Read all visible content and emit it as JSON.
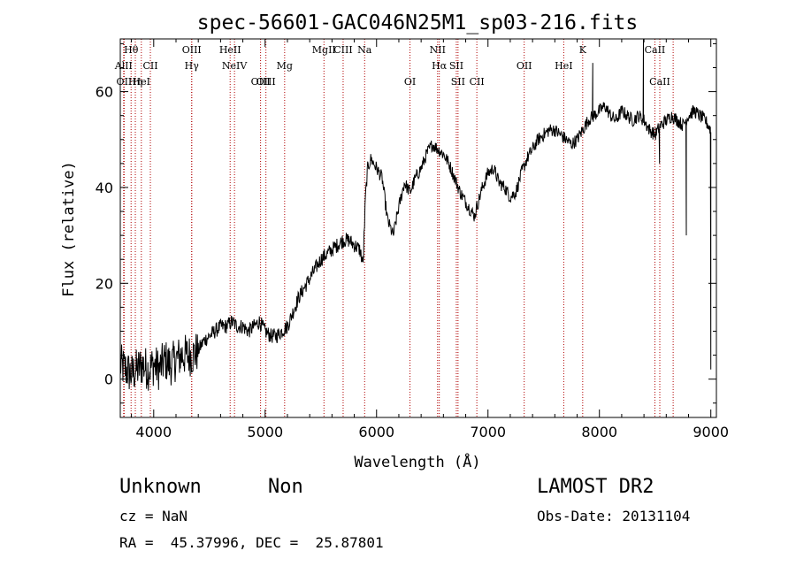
{
  "chart_data": {
    "type": "line",
    "title": "spec-56601-GAC046N25M1_sp03-216.fits",
    "xlabel": "Wavelength (Å)",
    "ylabel": "Flux (relative)",
    "xlim": [
      3700,
      9050
    ],
    "ylim": [
      -8,
      71
    ],
    "xticks": [
      4000,
      5000,
      6000,
      7000,
      8000,
      9000
    ],
    "xtick_labels": [
      "4000",
      "5000",
      "6000",
      "7000",
      "8000",
      "9000"
    ],
    "yticks": [
      0,
      20,
      40,
      60
    ],
    "ytick_labels": [
      "0",
      "20",
      "40",
      "60"
    ],
    "grid": false,
    "series": [
      {
        "x": [
          3700,
          3750,
          3800,
          3850,
          3900,
          3950,
          4000,
          4050,
          4100,
          4150,
          4200,
          4250,
          4300,
          4350,
          4400,
          4450,
          4500,
          4550,
          4600,
          4650,
          4700,
          4750,
          4800,
          4850,
          4900,
          4950,
          5000,
          5050,
          5100,
          5150,
          5200,
          5250,
          5300,
          5350,
          5400,
          5450,
          5500,
          5550,
          5600,
          5650,
          5700,
          5750,
          5800,
          5850,
          5880,
          5900,
          5920,
          5950,
          6000,
          6050,
          6100,
          6150,
          6200,
          6250,
          6300,
          6350,
          6400,
          6450,
          6500,
          6550,
          6600,
          6650,
          6700,
          6750,
          6800,
          6850,
          6880,
          6900,
          6950,
          7000,
          7050,
          7100,
          7150,
          7200,
          7250,
          7300,
          7350,
          7400,
          7450,
          7500,
          7550,
          7600,
          7650,
          7700,
          7750,
          7800,
          7850,
          7900,
          7950,
          8000,
          8050,
          8100,
          8150,
          8200,
          8250,
          8300,
          8350,
          8400,
          8450,
          8500,
          8550,
          8600,
          8650,
          8700,
          8750,
          8800,
          8850,
          8900,
          8950,
          9000
        ],
        "y": [
          3,
          2,
          1,
          2,
          3,
          2,
          3,
          2,
          4,
          3,
          4,
          5,
          5,
          5,
          6,
          8,
          9,
          10,
          11,
          11,
          12,
          11,
          11,
          10,
          11,
          12,
          10,
          9,
          9,
          10,
          11,
          14,
          17,
          19,
          21,
          23,
          25,
          26,
          27,
          28,
          29,
          29,
          28,
          27,
          24,
          38,
          44,
          46,
          44,
          42,
          33,
          30,
          36,
          41,
          39,
          42,
          44,
          47,
          49,
          48,
          47,
          45,
          42,
          39,
          37,
          35,
          34,
          36,
          40,
          43,
          44,
          41,
          40,
          38,
          39,
          43,
          46,
          48,
          50,
          51,
          52,
          52,
          51,
          50,
          49,
          50,
          52,
          54,
          55,
          56,
          57,
          55,
          54,
          56,
          55,
          54,
          55,
          54,
          52,
          51,
          53,
          54,
          55,
          54,
          53,
          55,
          56,
          55,
          54,
          52
        ],
        "spikes": [
          {
            "x": 7940,
            "y": 66
          },
          {
            "x": 8395,
            "y": 72
          },
          {
            "x": 8540,
            "y": 45
          },
          {
            "x": 8780,
            "y": 30
          },
          {
            "x": 9000,
            "y": 2
          }
        ]
      }
    ],
    "spectral_lines": [
      {
        "x": 3730,
        "label": "AlII",
        "row": 2
      },
      {
        "x": 3735,
        "label": "OII",
        "row": 3
      },
      {
        "x": 3797,
        "label": "Hθ",
        "row": 1
      },
      {
        "x": 3835,
        "label": "Hη",
        "row": 3
      },
      {
        "x": 3889,
        "label": "HeI",
        "row": 3
      },
      {
        "x": 3970,
        "label": "CII",
        "row": 2
      },
      {
        "x": 4341,
        "label": "OIII",
        "row": 1
      },
      {
        "x": 4341,
        "label": "Hγ",
        "row": 2
      },
      {
        "x": 4686,
        "label": "HeII",
        "row": 1
      },
      {
        "x": 4725,
        "label": "NeIV",
        "row": 2
      },
      {
        "x": 4959,
        "label": "OIII",
        "row": 3
      },
      {
        "x": 5007,
        "label": "OIII",
        "row": 3
      },
      {
        "x": 5175,
        "label": "Mg",
        "row": 2
      },
      {
        "x": 5528,
        "label": "MgII",
        "row": 1
      },
      {
        "x": 5700,
        "label": "CIII",
        "row": 1
      },
      {
        "x": 5893,
        "label": "Na",
        "row": 1
      },
      {
        "x": 6300,
        "label": "OI",
        "row": 3
      },
      {
        "x": 6548,
        "label": "NII",
        "row": 1
      },
      {
        "x": 6563,
        "label": "Hα",
        "row": 2
      },
      {
        "x": 6716,
        "label": "SII",
        "row": 2
      },
      {
        "x": 6731,
        "label": "SII",
        "row": 3
      },
      {
        "x": 6900,
        "label": "CII",
        "row": 3
      },
      {
        "x": 7325,
        "label": "OII",
        "row": 2
      },
      {
        "x": 7680,
        "label": "HeI",
        "row": 2
      },
      {
        "x": 7850,
        "label": "K",
        "row": 1
      },
      {
        "x": 8498,
        "label": "CaII",
        "row": 1
      },
      {
        "x": 8542,
        "label": "CaII",
        "row": 3
      },
      {
        "x": 8662,
        "label": "",
        "row": 3
      }
    ]
  },
  "info": {
    "class": "Unknown",
    "subclass": "Non",
    "survey": "LAMOST DR2",
    "cz": "cz = NaN",
    "obs_date": "Obs-Date: 20131104",
    "coords": "RA =  45.37996, DEC =  25.87801"
  }
}
